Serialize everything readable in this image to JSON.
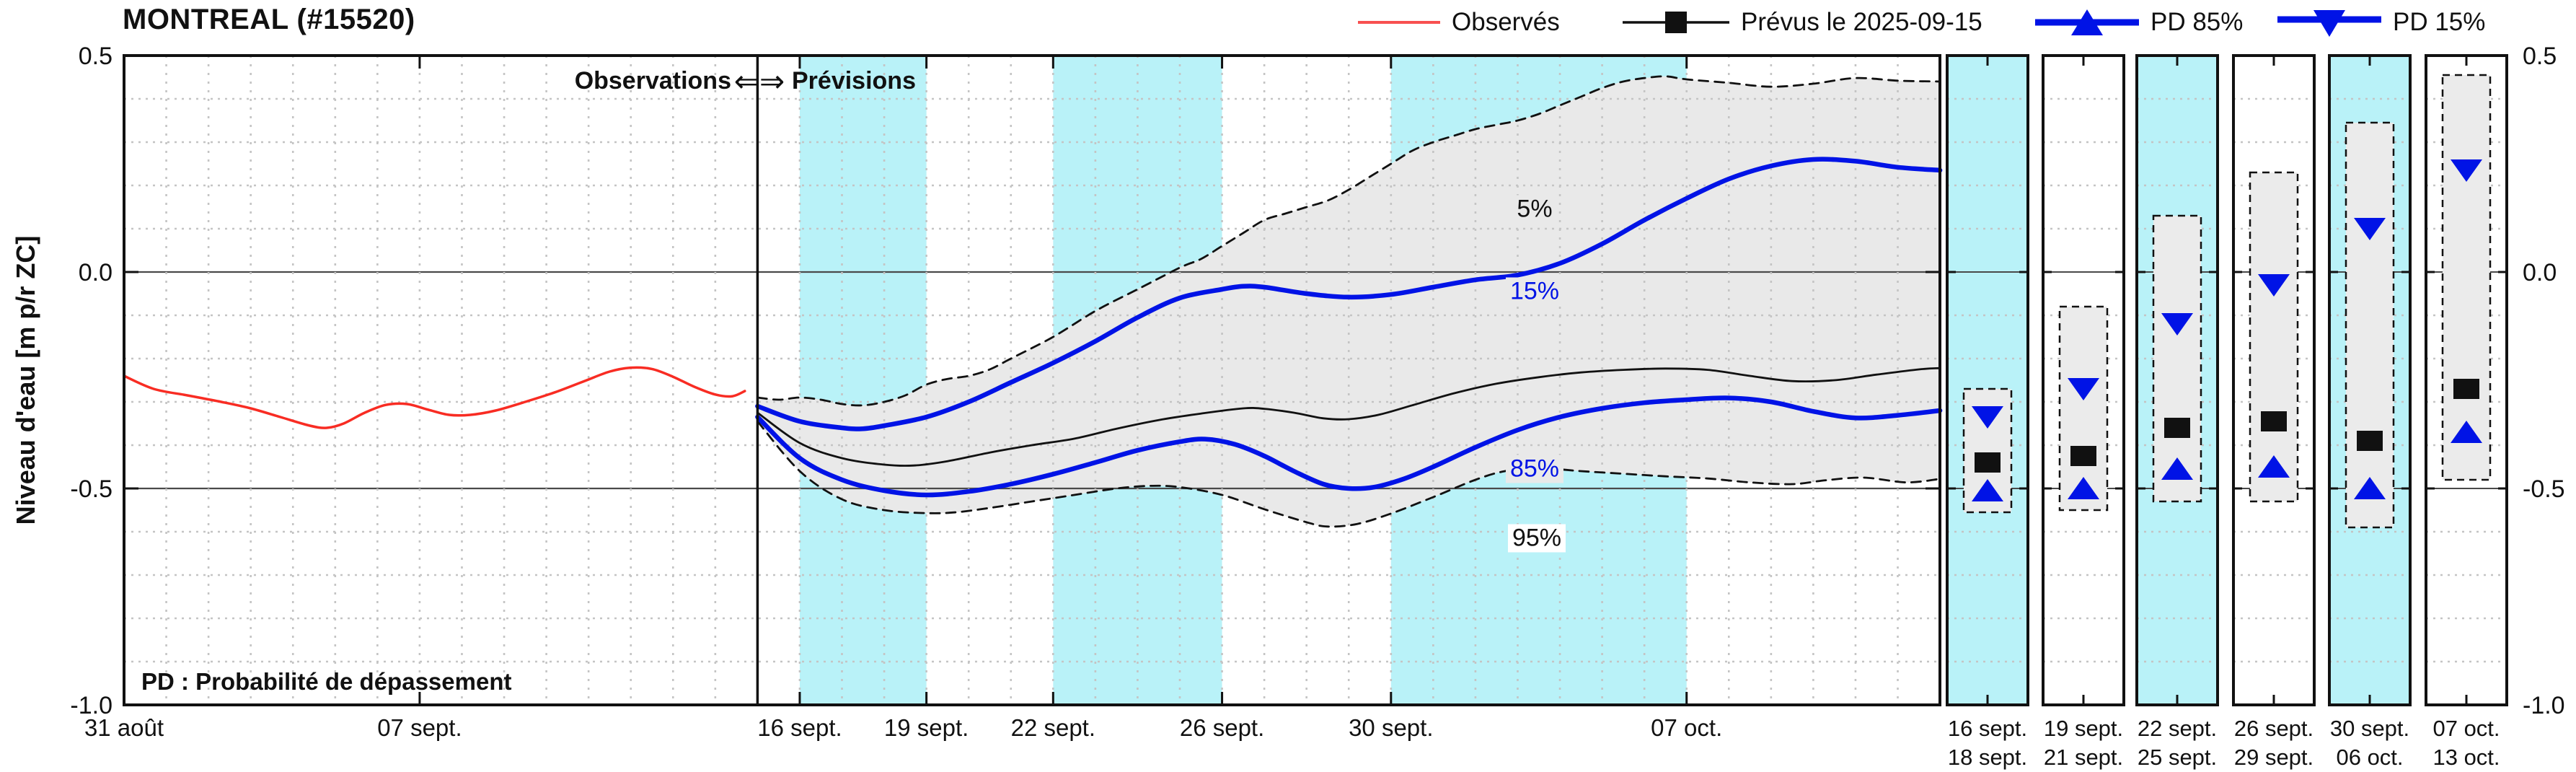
{
  "title": "MONTREAL (#15520)",
  "legend": {
    "observed": "Observés",
    "forecast": "Prévus le 2025-09-15",
    "pd85": "PD 85%",
    "pd15": "PD 15%"
  },
  "labels": {
    "observations_region": "Observations",
    "arrows": "⇐⇒",
    "previsions_region": "Prévisions",
    "pd_note": "PD : Probabilité de dépassement",
    "ylabel": "Niveau d'eau [m p/r ZC]"
  },
  "curve_labels": {
    "p5": "5%",
    "p15": "15%",
    "p85": "85%",
    "p95": "95%"
  },
  "colors": {
    "observed_red": "#f82c23",
    "forecast_blue": "#0013e6",
    "median_black": "#111111",
    "band_cyan": "#b9f2f8",
    "uncertainty_gray": "#e9e9e9",
    "grid_gray": "#c4c4c4",
    "zero_line_gray": "#4a4a4a"
  },
  "chart_data": {
    "type": "line",
    "title": "MONTREAL (#15520)",
    "ylabel": "Niveau d'eau [m p/r ZC]",
    "ylim": [
      -1.0,
      0.5
    ],
    "grid": true,
    "legend_position": "top",
    "x_unit": "days since 31 août (day 0)",
    "x_range_days": [
      0,
      43
    ],
    "forecast_start_day": 15,
    "y_ticks": [
      {
        "v": 0.5,
        "label": "0.5"
      },
      {
        "v": 0.0,
        "label": "0.0"
      },
      {
        "v": -0.5,
        "label": "-0.5"
      },
      {
        "v": -1.0,
        "label": "-1.0"
      }
    ],
    "main_x_ticks": [
      {
        "day": 0,
        "label": "31 août"
      },
      {
        "day": 7,
        "label": "07 sept."
      },
      {
        "day": 16,
        "label": "16 sept."
      },
      {
        "day": 19,
        "label": "19 sept."
      },
      {
        "day": 22,
        "label": "22 sept."
      },
      {
        "day": 26,
        "label": "26 sept."
      },
      {
        "day": 30,
        "label": "30 sept."
      },
      {
        "day": 37,
        "label": "07 oct."
      }
    ],
    "highlight_bands_days": [
      [
        16,
        19
      ],
      [
        22,
        26
      ],
      [
        30,
        37
      ]
    ],
    "series": {
      "observed": {
        "name": "Observés",
        "style": "solid",
        "color": "#f82c23",
        "width": 3.5,
        "points": [
          [
            0,
            -0.24
          ],
          [
            0.7,
            -0.27
          ],
          [
            1.5,
            -0.285
          ],
          [
            2.3,
            -0.3
          ],
          [
            3,
            -0.315
          ],
          [
            3.7,
            -0.335
          ],
          [
            4.4,
            -0.355
          ],
          [
            4.8,
            -0.36
          ],
          [
            5.2,
            -0.35
          ],
          [
            5.7,
            -0.325
          ],
          [
            6.2,
            -0.307
          ],
          [
            6.7,
            -0.305
          ],
          [
            7.2,
            -0.318
          ],
          [
            7.7,
            -0.33
          ],
          [
            8.2,
            -0.33
          ],
          [
            8.8,
            -0.32
          ],
          [
            9.5,
            -0.3
          ],
          [
            10.2,
            -0.278
          ],
          [
            10.9,
            -0.252
          ],
          [
            11.5,
            -0.23
          ],
          [
            12,
            -0.221
          ],
          [
            12.5,
            -0.224
          ],
          [
            13,
            -0.242
          ],
          [
            13.5,
            -0.265
          ],
          [
            14,
            -0.283
          ],
          [
            14.4,
            -0.287
          ],
          [
            14.7,
            -0.275
          ]
        ]
      },
      "p5": {
        "name": "5%",
        "style": "dashed",
        "color": "#111111",
        "width": 2.8,
        "points": [
          [
            15,
            -0.29
          ],
          [
            15.5,
            -0.295
          ],
          [
            16,
            -0.29
          ],
          [
            16.5,
            -0.295
          ],
          [
            17,
            -0.305
          ],
          [
            17.5,
            -0.308
          ],
          [
            18,
            -0.3
          ],
          [
            18.5,
            -0.285
          ],
          [
            19,
            -0.26
          ],
          [
            19.5,
            -0.247
          ],
          [
            20,
            -0.24
          ],
          [
            20.5,
            -0.225
          ],
          [
            21,
            -0.2
          ],
          [
            22,
            -0.15
          ],
          [
            23,
            -0.09
          ],
          [
            24,
            -0.04
          ],
          [
            25,
            0.01
          ],
          [
            25.5,
            0.03
          ],
          [
            26,
            0.06
          ],
          [
            26.5,
            0.09
          ],
          [
            27,
            0.12
          ],
          [
            27.5,
            0.135
          ],
          [
            28,
            0.15
          ],
          [
            28.5,
            0.165
          ],
          [
            29,
            0.19
          ],
          [
            29.5,
            0.22
          ],
          [
            30,
            0.25
          ],
          [
            30.5,
            0.28
          ],
          [
            31,
            0.3
          ],
          [
            31.5,
            0.315
          ],
          [
            32,
            0.33
          ],
          [
            32.5,
            0.34
          ],
          [
            33,
            0.35
          ],
          [
            33.5,
            0.365
          ],
          [
            34,
            0.385
          ],
          [
            34.5,
            0.405
          ],
          [
            35,
            0.425
          ],
          [
            35.5,
            0.44
          ],
          [
            36,
            0.448
          ],
          [
            36.5,
            0.452
          ],
          [
            37,
            0.445
          ],
          [
            38,
            0.437
          ],
          [
            39,
            0.428
          ],
          [
            40,
            0.435
          ],
          [
            41,
            0.448
          ],
          [
            42,
            0.442
          ],
          [
            43,
            0.44
          ]
        ]
      },
      "p15": {
        "name": "PD 15%",
        "style": "solid",
        "color": "#0013e6",
        "width": 6.5,
        "points": [
          [
            15,
            -0.31
          ],
          [
            16,
            -0.345
          ],
          [
            17,
            -0.36
          ],
          [
            17.5,
            -0.362
          ],
          [
            18,
            -0.355
          ],
          [
            19,
            -0.335
          ],
          [
            20,
            -0.3
          ],
          [
            21,
            -0.255
          ],
          [
            22,
            -0.21
          ],
          [
            23,
            -0.16
          ],
          [
            24,
            -0.105
          ],
          [
            25,
            -0.06
          ],
          [
            26,
            -0.04
          ],
          [
            26.5,
            -0.033
          ],
          [
            27,
            -0.035
          ],
          [
            28,
            -0.05
          ],
          [
            29,
            -0.058
          ],
          [
            30,
            -0.052
          ],
          [
            31,
            -0.035
          ],
          [
            32,
            -0.018
          ],
          [
            33,
            -0.007
          ],
          [
            34,
            0.02
          ],
          [
            35,
            0.065
          ],
          [
            36,
            0.12
          ],
          [
            37,
            0.17
          ],
          [
            38,
            0.215
          ],
          [
            39,
            0.245
          ],
          [
            40,
            0.26
          ],
          [
            41,
            0.256
          ],
          [
            42,
            0.242
          ],
          [
            43,
            0.235
          ]
        ]
      },
      "p50": {
        "name": "Prévus le 2025-09-15",
        "style": "solid",
        "color": "#111111",
        "width": 2.8,
        "points": [
          [
            15,
            -0.325
          ],
          [
            16,
            -0.395
          ],
          [
            17,
            -0.43
          ],
          [
            18,
            -0.445
          ],
          [
            18.7,
            -0.447
          ],
          [
            19.5,
            -0.437
          ],
          [
            20.5,
            -0.417
          ],
          [
            21.5,
            -0.4
          ],
          [
            22.5,
            -0.385
          ],
          [
            23.5,
            -0.362
          ],
          [
            24.5,
            -0.342
          ],
          [
            25.5,
            -0.327
          ],
          [
            26.5,
            -0.315
          ],
          [
            27,
            -0.316
          ],
          [
            27.7,
            -0.325
          ],
          [
            28.4,
            -0.338
          ],
          [
            29,
            -0.34
          ],
          [
            29.7,
            -0.33
          ],
          [
            30.5,
            -0.308
          ],
          [
            31.5,
            -0.28
          ],
          [
            32.5,
            -0.258
          ],
          [
            33.5,
            -0.243
          ],
          [
            34.5,
            -0.232
          ],
          [
            35.5,
            -0.226
          ],
          [
            36.5,
            -0.223
          ],
          [
            37.5,
            -0.226
          ],
          [
            38.5,
            -0.24
          ],
          [
            39.5,
            -0.252
          ],
          [
            40.5,
            -0.25
          ],
          [
            41.5,
            -0.237
          ],
          [
            42.5,
            -0.225
          ],
          [
            43,
            -0.222
          ]
        ]
      },
      "p85": {
        "name": "PD 85%",
        "style": "solid",
        "color": "#0013e6",
        "width": 6.5,
        "points": [
          [
            15,
            -0.335
          ],
          [
            16,
            -0.43
          ],
          [
            17,
            -0.48
          ],
          [
            18,
            -0.505
          ],
          [
            19,
            -0.515
          ],
          [
            20,
            -0.507
          ],
          [
            21,
            -0.49
          ],
          [
            22,
            -0.467
          ],
          [
            23,
            -0.44
          ],
          [
            24,
            -0.412
          ],
          [
            25,
            -0.392
          ],
          [
            25.6,
            -0.386
          ],
          [
            26.3,
            -0.398
          ],
          [
            27,
            -0.425
          ],
          [
            27.7,
            -0.46
          ],
          [
            28.4,
            -0.49
          ],
          [
            29,
            -0.5
          ],
          [
            29.6,
            -0.497
          ],
          [
            30.3,
            -0.478
          ],
          [
            31,
            -0.45
          ],
          [
            32,
            -0.405
          ],
          [
            33,
            -0.365
          ],
          [
            34,
            -0.335
          ],
          [
            35,
            -0.315
          ],
          [
            36,
            -0.302
          ],
          [
            37,
            -0.295
          ],
          [
            38,
            -0.291
          ],
          [
            39,
            -0.3
          ],
          [
            40,
            -0.322
          ],
          [
            41,
            -0.337
          ],
          [
            42,
            -0.331
          ],
          [
            43,
            -0.32
          ]
        ]
      },
      "p95": {
        "name": "95%",
        "style": "dashed",
        "color": "#111111",
        "width": 2.8,
        "points": [
          [
            15,
            -0.345
          ],
          [
            16,
            -0.46
          ],
          [
            17,
            -0.525
          ],
          [
            18,
            -0.55
          ],
          [
            19,
            -0.557
          ],
          [
            19.7,
            -0.555
          ],
          [
            20.5,
            -0.545
          ],
          [
            21.5,
            -0.53
          ],
          [
            22.5,
            -0.515
          ],
          [
            23.5,
            -0.5
          ],
          [
            24.3,
            -0.494
          ],
          [
            25,
            -0.497
          ],
          [
            26,
            -0.515
          ],
          [
            27,
            -0.548
          ],
          [
            28,
            -0.578
          ],
          [
            28.5,
            -0.588
          ],
          [
            29.2,
            -0.582
          ],
          [
            30,
            -0.558
          ],
          [
            31,
            -0.52
          ],
          [
            32,
            -0.48
          ],
          [
            32.7,
            -0.46
          ],
          [
            33.5,
            -0.453
          ],
          [
            34.5,
            -0.46
          ],
          [
            35.5,
            -0.466
          ],
          [
            36.5,
            -0.472
          ],
          [
            37.5,
            -0.477
          ],
          [
            38.5,
            -0.486
          ],
          [
            39.5,
            -0.49
          ],
          [
            40.3,
            -0.481
          ],
          [
            41.2,
            -0.475
          ],
          [
            42.2,
            -0.486
          ],
          [
            43,
            -0.478
          ]
        ]
      }
    },
    "windows": [
      {
        "label1": "16 sept.",
        "label2": "18 sept.",
        "bg": "cyan",
        "bar_top": -0.27,
        "bar_bottom": -0.555,
        "pd15": -0.335,
        "median": -0.44,
        "pd85": -0.505
      },
      {
        "label1": "19 sept.",
        "label2": "21 sept.",
        "bg": "white",
        "bar_top": -0.08,
        "bar_bottom": -0.55,
        "pd15": -0.27,
        "median": -0.425,
        "pd85": -0.5
      },
      {
        "label1": "22 sept.",
        "label2": "25 sept.",
        "bg": "cyan",
        "bar_top": 0.13,
        "bar_bottom": -0.53,
        "pd15": -0.12,
        "median": -0.36,
        "pd85": -0.455
      },
      {
        "label1": "26 sept.",
        "label2": "29 sept.",
        "bg": "white",
        "bar_top": 0.23,
        "bar_bottom": -0.53,
        "pd15": -0.03,
        "median": -0.345,
        "pd85": -0.45
      },
      {
        "label1": "30 sept.",
        "label2": "06 oct.",
        "bg": "cyan",
        "bar_top": 0.345,
        "bar_bottom": -0.59,
        "pd15": 0.1,
        "median": -0.39,
        "pd85": -0.5
      },
      {
        "label1": "07 oct.",
        "label2": "13 oct.",
        "bg": "white",
        "bar_top": 0.455,
        "bar_bottom": -0.48,
        "pd15": 0.235,
        "median": -0.27,
        "pd85": -0.37
      }
    ]
  }
}
